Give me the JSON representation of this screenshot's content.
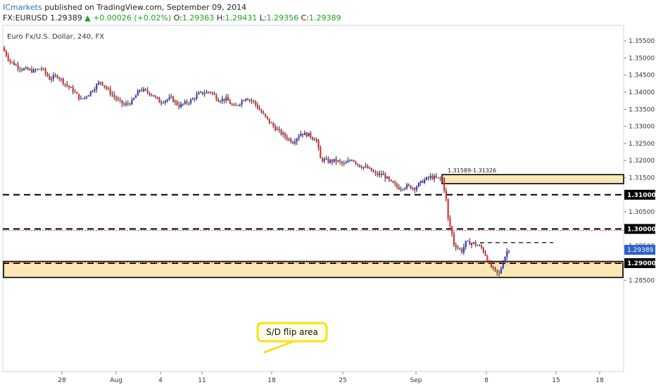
{
  "header": {
    "brand": "ICmarkets",
    "published": "published on TradingView.com, September 09, 2014",
    "symbol": "FX:EURUSD",
    "last": "1.29389",
    "change": "+0.00026 (+0.02%)",
    "o_label": "O:",
    "o_val": "1.29363",
    "h_label": "H:",
    "h_val": "1.29431",
    "l_label": "L:",
    "l_val": "1.29356",
    "c_label": "C:",
    "c_val": "1.29389",
    "up_arrow": "▲"
  },
  "colors": {
    "up": "#2d3bd4",
    "down": "#e03030",
    "zone_fill": "#fbe8b4",
    "price_tag": "#2f5fd0",
    "callout": "#f5e21a"
  },
  "chart_data": {
    "type": "candlestick",
    "title": "Euro Fx/U.S. Dollar, 240, FX",
    "ylim": [
      1.262,
      1.3575
    ],
    "y_ticks": [
      "1.35500",
      "1.35000",
      "1.34500",
      "1.34000",
      "1.33500",
      "1.33000",
      "1.32500",
      "1.32000",
      "1.31500",
      "1.30500",
      "1.29500",
      "1.28500"
    ],
    "x_ticks": [
      "28",
      "Aug",
      "4",
      "11",
      "18",
      "25",
      "Sep",
      "8",
      "15",
      "18"
    ],
    "key_levels": [
      {
        "label": "1.31000",
        "value": 1.31
      },
      {
        "label": "1.30000",
        "value": 1.3
      },
      {
        "label": "1.29000",
        "value": 1.29
      }
    ],
    "current_price": {
      "label": "1.29389",
      "value": 1.29389
    },
    "zones": [
      {
        "label": "1.31589-1.31326",
        "top": 1.31589,
        "bottom": 1.31326
      },
      {
        "label": "",
        "top": 1.2905,
        "bottom": 1.2858
      }
    ],
    "annotation": "S/D flip area",
    "path": [
      [
        0,
        1.353
      ],
      [
        4,
        1.349
      ],
      [
        10,
        1.3468
      ],
      [
        16,
        1.3462
      ],
      [
        20,
        1.347
      ],
      [
        24,
        1.344
      ],
      [
        28,
        1.3448
      ],
      [
        32,
        1.3425
      ],
      [
        36,
        1.3405
      ],
      [
        40,
        1.3378
      ],
      [
        44,
        1.3395
      ],
      [
        48,
        1.342
      ],
      [
        50,
        1.3432
      ],
      [
        54,
        1.3405
      ],
      [
        58,
        1.338
      ],
      [
        62,
        1.3362
      ],
      [
        66,
        1.3372
      ],
      [
        70,
        1.3408
      ],
      [
        72,
        1.3405
      ],
      [
        76,
        1.3395
      ],
      [
        80,
        1.3372
      ],
      [
        86,
        1.3382
      ],
      [
        90,
        1.336
      ],
      [
        96,
        1.3375
      ],
      [
        100,
        1.3395
      ],
      [
        106,
        1.3402
      ],
      [
        110,
        1.3378
      ],
      [
        114,
        1.338
      ],
      [
        118,
        1.3355
      ],
      [
        122,
        1.3375
      ],
      [
        124,
        1.3385
      ],
      [
        128,
        1.3372
      ],
      [
        132,
        1.334
      ],
      [
        138,
        1.33
      ],
      [
        144,
        1.327
      ],
      [
        148,
        1.3255
      ],
      [
        152,
        1.328
      ],
      [
        156,
        1.3275
      ],
      [
        160,
        1.326
      ],
      [
        162,
        1.3205
      ],
      [
        166,
        1.3198
      ],
      [
        170,
        1.32
      ],
      [
        174,
        1.3188
      ],
      [
        178,
        1.3205
      ],
      [
        182,
        1.3185
      ],
      [
        186,
        1.3178
      ],
      [
        190,
        1.316
      ],
      [
        194,
        1.3158
      ],
      [
        198,
        1.3135
      ],
      [
        202,
        1.312
      ],
      [
        206,
        1.3125
      ],
      [
        210,
        1.312
      ],
      [
        214,
        1.314
      ],
      [
        218,
        1.3152
      ],
      [
        222,
        1.3147
      ],
      [
        224,
        1.3148
      ],
      [
        226,
        1.3085
      ],
      [
        227,
        1.303
      ],
      [
        229,
        1.2985
      ],
      [
        230,
        1.2955
      ],
      [
        232,
        1.2945
      ],
      [
        234,
        1.2935
      ],
      [
        236,
        1.296
      ],
      [
        240,
        1.2958
      ],
      [
        244,
        1.2945
      ],
      [
        246,
        1.2925
      ],
      [
        248,
        1.2895
      ],
      [
        250,
        1.2882
      ],
      [
        252,
        1.287
      ],
      [
        253,
        1.2868
      ],
      [
        255,
        1.2905
      ],
      [
        257,
        1.2935
      ],
      [
        258,
        1.29389
      ]
    ]
  }
}
